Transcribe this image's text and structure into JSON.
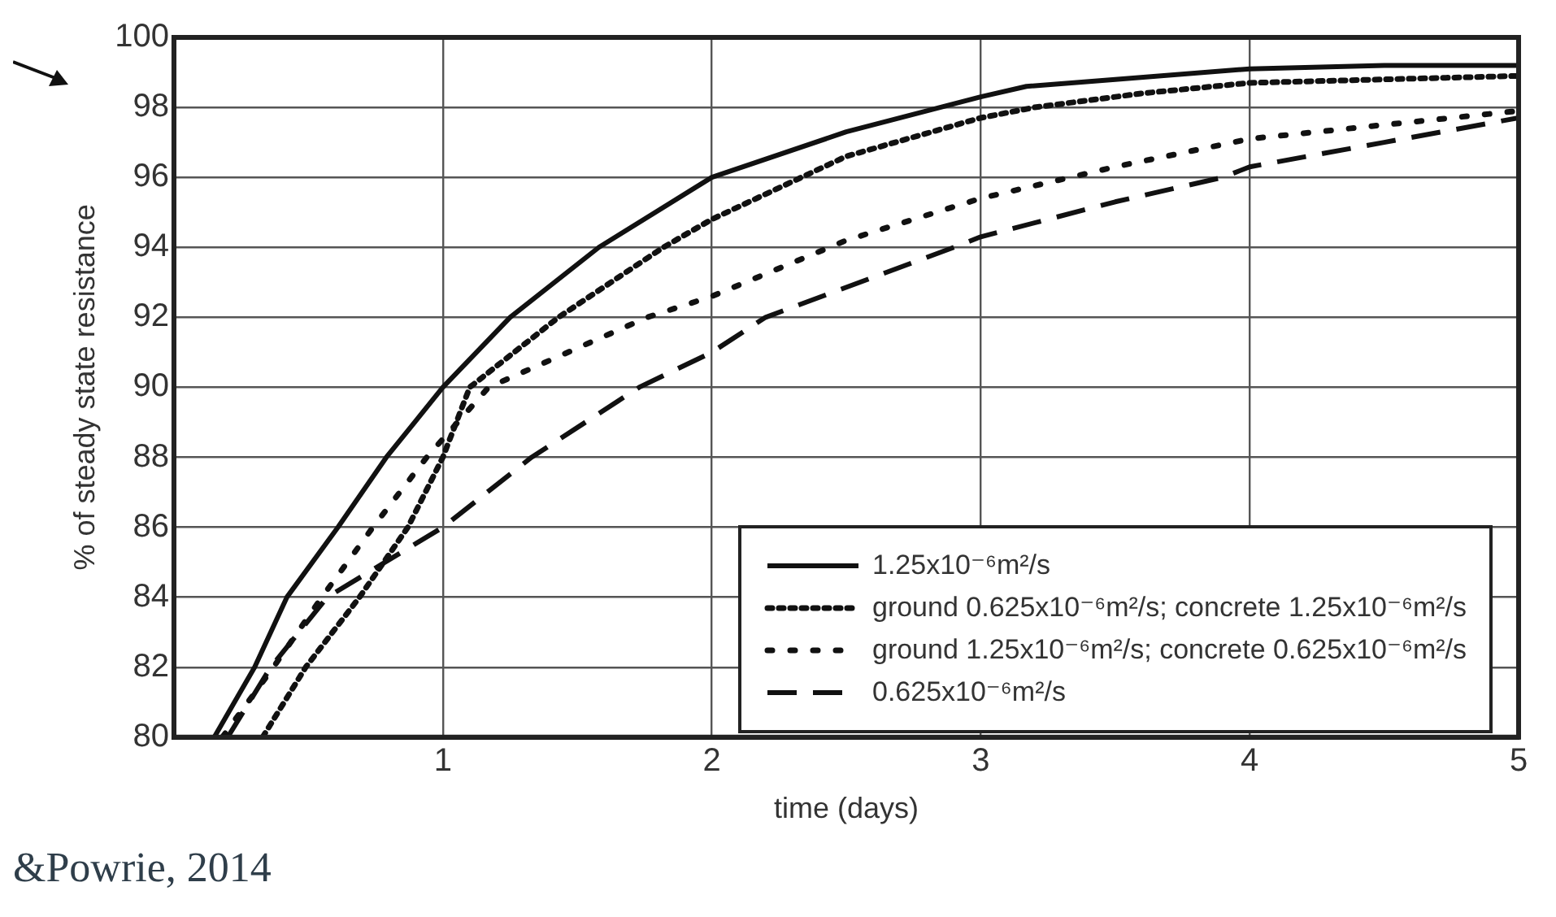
{
  "chart_data": {
    "type": "line",
    "xlabel": "time (days)",
    "ylabel": "% of steady state resistance",
    "xlim": [
      0,
      5
    ],
    "ylim": [
      80,
      100
    ],
    "xticks": [
      1,
      2,
      3,
      4,
      5
    ],
    "yticks": [
      80,
      82,
      84,
      86,
      88,
      90,
      92,
      94,
      96,
      98,
      100
    ],
    "grid": true,
    "legend": "bottom right",
    "marker": "none",
    "annotations": [
      "&Powrie, 2014"
    ],
    "series": [
      {
        "name": "1.25x10⁻⁶m²/s",
        "color": "#111111",
        "line_style": "solid",
        "x": [
          0.15,
          0.3,
          0.42,
          0.61,
          0.79,
          1.0,
          1.25,
          1.58,
          2.0,
          2.5,
          3.0,
          3.17,
          3.5,
          4.0,
          4.5,
          5.0
        ],
        "values": [
          80,
          82,
          84,
          86,
          88,
          90,
          92,
          94,
          96,
          97.3,
          98.3,
          98.6,
          98.8,
          99.1,
          99.2,
          99.2
        ]
      },
      {
        "name": "ground 0.625x10⁻⁶m²/s; concrete 1.25x10⁻⁶m²/s",
        "color": "#111111",
        "line_style": "dotted",
        "x": [
          0.33,
          0.49,
          0.69,
          0.87,
          1.0,
          1.1,
          1.43,
          1.82,
          2.0,
          2.5,
          3.0,
          3.2,
          3.6,
          4.0,
          4.5,
          5.0
        ],
        "values": [
          80,
          82,
          84,
          86,
          88,
          90,
          92,
          94,
          94.8,
          96.6,
          97.7,
          98.0,
          98.4,
          98.7,
          98.8,
          98.9
        ]
      },
      {
        "name": "ground 1.25x10⁻⁶m²/s; concrete 0.625x10⁻⁶m²/s",
        "color": "#111111",
        "line_style": "dotted",
        "x": [
          0.18,
          0.37,
          0.55,
          0.74,
          0.94,
          1.17,
          1.76,
          2.0,
          2.5,
          3.0,
          3.5,
          4.0,
          4.5,
          5.0
        ],
        "values": [
          80,
          82,
          84,
          86,
          88,
          90,
          92,
          92.6,
          94.2,
          95.4,
          96.3,
          97.1,
          97.5,
          97.9
        ]
      },
      {
        "name": "0.625x10⁻⁶m²/s",
        "color": "#111111",
        "line_style": "dashed",
        "x": [
          0.2,
          0.36,
          0.57,
          1.0,
          1.33,
          1.73,
          2.0,
          2.2,
          2.9,
          3.0,
          3.5,
          3.9,
          4.0,
          4.5,
          5.0
        ],
        "values": [
          80,
          82,
          84,
          86,
          88,
          90,
          91.0,
          92,
          94,
          94.3,
          95.3,
          96,
          96.3,
          97.0,
          97.7
        ]
      }
    ]
  }
}
